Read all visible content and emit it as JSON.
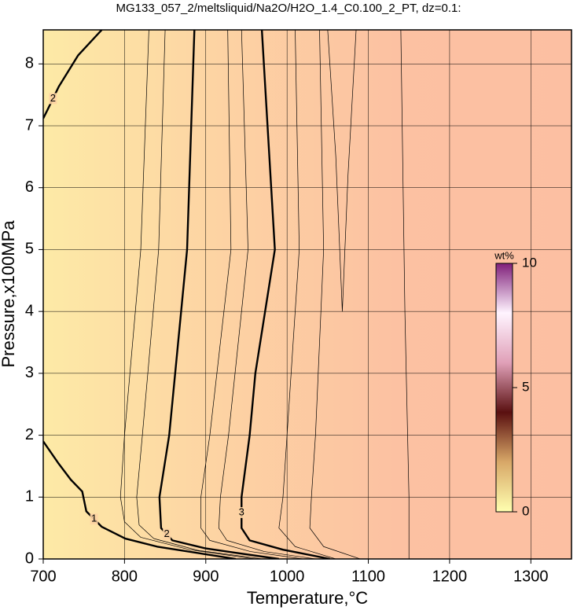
{
  "chart_data": {
    "type": "contour",
    "title": "MG133_057_2/meltsliquid/Na2O/H2O_1.4_C0.100_2_PT, dz=0.1:",
    "xlabel": "Temperature,°C",
    "ylabel": "Pressure,x100MPa",
    "xlim": [
      700,
      1350
    ],
    "ylim": [
      0,
      8.55
    ],
    "xticks": [
      700,
      800,
      900,
      1000,
      1100,
      1200,
      1300
    ],
    "yticks": [
      0,
      1,
      2,
      3,
      4,
      5,
      6,
      7,
      8
    ],
    "grid": true,
    "background_colors": [
      "#fdeaa6",
      "#fdd3a3",
      "#fcc1a2",
      "#fcbfa2"
    ],
    "contours": [
      {
        "level": 1,
        "major": true,
        "x": [
          700,
          719,
          734,
          748,
          753,
          772,
          801,
          840,
          898,
          937
        ],
        "y": [
          1.9,
          1.54,
          1.28,
          1.09,
          0.77,
          0.52,
          0.33,
          0.2,
          0.08,
          0
        ]
      },
      {
        "level": 2,
        "major": true,
        "x": [
          886,
          877,
          855,
          843,
          845,
          859,
          900,
          937,
          990
        ],
        "y": [
          8.55,
          5,
          2,
          1,
          0.5,
          0.3,
          0.17,
          0.1,
          0
        ]
      },
      {
        "level": 3,
        "major": true,
        "x": [
          969,
          985,
          961,
          954,
          944,
          944,
          954,
          995,
          1053
        ],
        "y": [
          8.55,
          5,
          3,
          2,
          1,
          0.5,
          0.3,
          0.15,
          0
        ]
      },
      {
        "level": 2,
        "major": true,
        "x": [
          772,
          743,
          719,
          705,
          700
        ],
        "y": [
          8.55,
          8.14,
          7.63,
          7.25,
          7.12
        ]
      },
      {
        "level": 1.5,
        "major": false,
        "x": [
          830,
          820,
          800,
          795,
          800,
          820,
          880,
          960
        ],
        "y": [
          8.55,
          5,
          2,
          1,
          0.6,
          0.35,
          0.15,
          0
        ]
      },
      {
        "level": 1.7,
        "major": false,
        "x": [
          850,
          842,
          822,
          815,
          818,
          836,
          890,
          970
        ],
        "y": [
          8.55,
          5,
          2,
          1,
          0.55,
          0.33,
          0.14,
          0
        ]
      },
      {
        "level": 2.5,
        "major": false,
        "x": [
          927,
          931,
          905,
          894,
          894,
          905,
          955,
          1020
        ],
        "y": [
          8.55,
          5,
          2,
          1,
          0.5,
          0.3,
          0.12,
          0
        ]
      },
      {
        "level": 2.7,
        "major": false,
        "x": [
          944,
          952,
          928,
          918,
          916,
          926,
          972,
          1035
        ],
        "y": [
          8.55,
          5,
          2,
          1,
          0.5,
          0.3,
          0.12,
          0
        ]
      },
      {
        "level": 3.5,
        "major": false,
        "x": [
          1010,
          1015,
          1000,
          995,
          990,
          1010,
          1060
        ],
        "y": [
          8.55,
          5,
          2,
          1,
          0.5,
          0.2,
          0
        ]
      },
      {
        "level": 3.7,
        "major": false,
        "x": [
          1040,
          1045,
          1035,
          1030,
          1028,
          1045,
          1090
        ],
        "y": [
          8.55,
          5,
          2,
          1,
          0.5,
          0.2,
          0
        ]
      },
      {
        "level": 3.9,
        "major": false,
        "x": [
          1050,
          1060,
          1068,
          1075,
          1085
        ],
        "y": [
          8.55,
          6.5,
          4,
          6.2,
          8.55
        ]
      },
      {
        "level": 4,
        "major": false,
        "x": [
          1140,
          1145,
          1150,
          1150
        ],
        "y": [
          8.55,
          4,
          1,
          0
        ]
      }
    ],
    "colorbar": {
      "label": "wt%",
      "lim": [
        0,
        10
      ],
      "ticks": [
        0,
        5,
        10
      ],
      "colors": [
        "#ffffb0",
        "#d8a868",
        "#5a1010",
        "#e0a0b8",
        "#fff4ff",
        "#80207a"
      ]
    }
  }
}
